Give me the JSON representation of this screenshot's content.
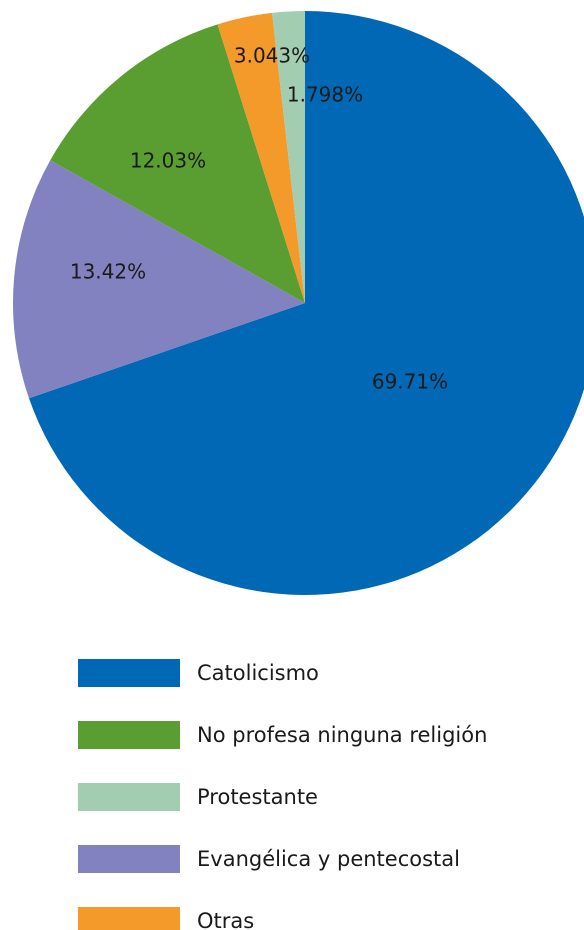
{
  "chart_data": {
    "type": "pie",
    "categories": [
      "Catolicismo",
      "No profesa ninguna religión",
      "Protestante",
      "Evangélica y pentecostal",
      "Otras"
    ],
    "values": [
      69.71,
      12.03,
      1.798,
      13.42,
      3.043
    ],
    "value_labels": [
      "69.71%",
      "12.03%",
      "1.798%",
      "13.42%",
      "3.043%"
    ],
    "colors": [
      "#0068b4",
      "#5a9e32",
      "#a3cdb0",
      "#8282c0",
      "#f39a2b"
    ],
    "legend": "bottom"
  }
}
